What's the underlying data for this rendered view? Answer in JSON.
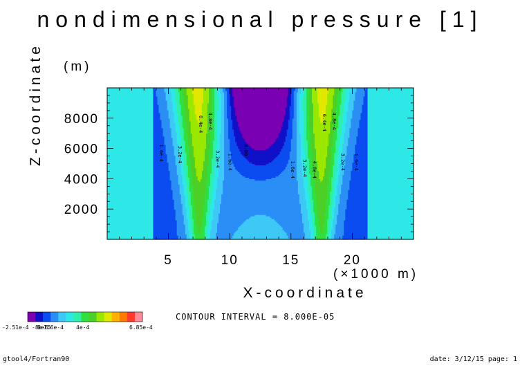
{
  "title": "nondimensional pressure [1]",
  "z_unit": "(m)",
  "x_unit": "(×1000 m)",
  "contour_interval": "CONTOUR INTERVAL = 8.000E-05",
  "footer_left": "gtool4/Fortran90",
  "footer_right": "date: 3/12/15 page: 1",
  "colors": {
    "levels": [
      "#7b00b4",
      "#1010c8",
      "#0a4cf0",
      "#2a8ef5",
      "#3ec8f5",
      "#2ee8e8",
      "#2ef0a8",
      "#30e040",
      "#4cd028",
      "#9ae800",
      "#e0e800",
      "#ffb000",
      "#ff7a00",
      "#ff3a2a",
      "#ff8a9a"
    ]
  },
  "chart_data": {
    "type": "contour",
    "title": "nondimensional pressure [1]",
    "xlabel": "X-coordinate",
    "ylabel": "Z-coordinate",
    "xlim": [
      0,
      25
    ],
    "ylim": [
      0,
      10000
    ],
    "x_ticks": [
      5,
      10,
      15,
      20
    ],
    "y_ticks": [
      2000,
      4000,
      6000,
      8000
    ],
    "x_tick_labels": [
      "5",
      "10",
      "15",
      "20"
    ],
    "y_tick_labels": [
      "2000",
      "4000",
      "6000",
      "8000"
    ],
    "value_range": [
      -0.000251,
      0.000685
    ],
    "contour_interval": 8e-05,
    "colorbar_labels": [
      "-2.51e-4",
      "-8e-5",
      "8e-5",
      "1.6e-4",
      "4e-4",
      "6.85e-4"
    ],
    "contour_labels": [
      {
        "text": "6.4e-4",
        "x": 7.5,
        "z": 7600
      },
      {
        "text": "4.8e-4",
        "x": 8.3,
        "z": 7800
      },
      {
        "text": "1.6e-4",
        "x": 4.3,
        "z": 5700
      },
      {
        "text": "3.2e-4",
        "x": 5.8,
        "z": 5600
      },
      {
        "text": "3.2e-4",
        "x": 8.9,
        "z": 5300
      },
      {
        "text": "1.6e-4",
        "x": 9.9,
        "z": 5100
      },
      {
        "text": "0.00",
        "x": 11.2,
        "z": 5900
      },
      {
        "text": "1.6e-4",
        "x": 15.0,
        "z": 4600
      },
      {
        "text": "3.2e-4",
        "x": 16.0,
        "z": 4700
      },
      {
        "text": "4.8e-4",
        "x": 16.8,
        "z": 4600
      },
      {
        "text": "6.4e-4",
        "x": 17.6,
        "z": 7700
      },
      {
        "text": "4.8e-4",
        "x": 18.4,
        "z": 7800
      },
      {
        "text": "3.2e-4",
        "x": 19.1,
        "z": 5100
      },
      {
        "text": "1.6e-4",
        "x": 20.2,
        "z": 5100
      }
    ]
  }
}
